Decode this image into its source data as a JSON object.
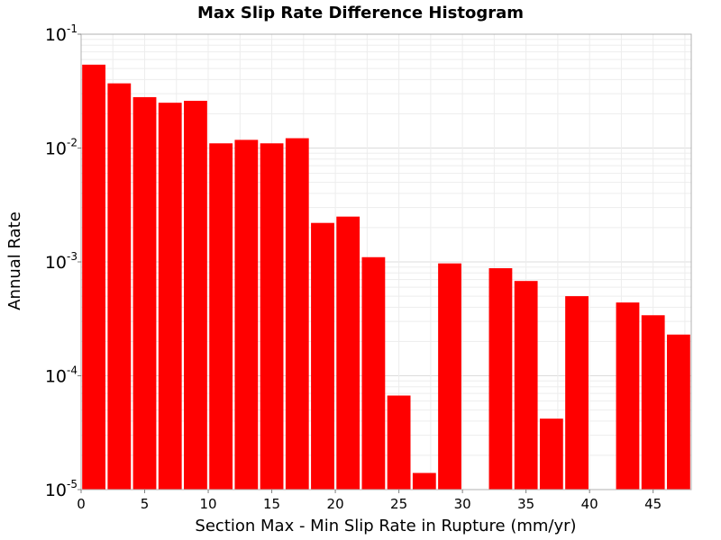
{
  "chart_data": {
    "type": "bar",
    "title": "Max Slip Rate Difference Histogram",
    "xlabel": "Section Max - Min Slip Rate in Rupture (mm/yr)",
    "ylabel": "Annual Rate",
    "y_scale": "log",
    "ylim": [
      1e-05,
      0.1
    ],
    "xlim": [
      0,
      48
    ],
    "bin_width": 2,
    "x_ticks": [
      "0",
      "5",
      "10",
      "15",
      "20",
      "25",
      "30",
      "35",
      "40",
      "45"
    ],
    "y_ticks": [
      {
        "base": "10",
        "exp": "-1",
        "value": 0.1
      },
      {
        "base": "10",
        "exp": "-2",
        "value": 0.01
      },
      {
        "base": "10",
        "exp": "-3",
        "value": 0.001
      },
      {
        "base": "10",
        "exp": "-4",
        "value": 0.0001
      },
      {
        "base": "10",
        "exp": "-5",
        "value": 1e-05
      }
    ],
    "bar_color": "#ff0000",
    "grid": true,
    "bins": [
      {
        "x": 0,
        "value": 0.054
      },
      {
        "x": 2,
        "value": 0.037
      },
      {
        "x": 4,
        "value": 0.028
      },
      {
        "x": 6,
        "value": 0.025
      },
      {
        "x": 8,
        "value": 0.026
      },
      {
        "x": 10,
        "value": 0.011
      },
      {
        "x": 12,
        "value": 0.0118
      },
      {
        "x": 14,
        "value": 0.011
      },
      {
        "x": 16,
        "value": 0.0122
      },
      {
        "x": 18,
        "value": 0.0022
      },
      {
        "x": 20,
        "value": 0.0025
      },
      {
        "x": 22,
        "value": 0.0011
      },
      {
        "x": 24,
        "value": 6.7e-05
      },
      {
        "x": 26,
        "value": 1.4e-05
      },
      {
        "x": 28,
        "value": 0.00097
      },
      {
        "x": 32,
        "value": 0.00088
      },
      {
        "x": 34,
        "value": 0.00068
      },
      {
        "x": 36,
        "value": 4.2e-05
      },
      {
        "x": 38,
        "value": 0.0005
      },
      {
        "x": 42,
        "value": 0.00044
      },
      {
        "x": 44,
        "value": 0.00034
      },
      {
        "x": 46,
        "value": 0.00023
      }
    ]
  }
}
